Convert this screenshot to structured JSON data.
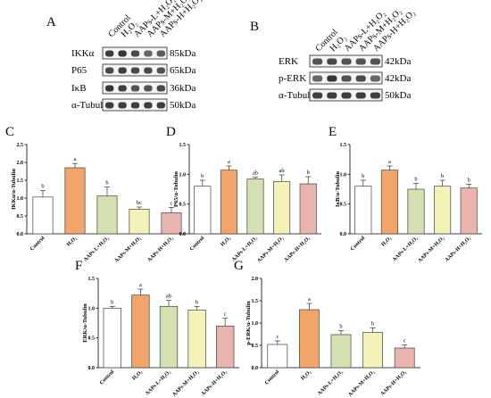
{
  "panels": {
    "A": {
      "letter": "A",
      "lanes": [
        "Control",
        "H₂O₂",
        "AAPs-L+H₂O₂",
        "AAPs-M+H₂O₂",
        "AAPs-H+H₂O₂"
      ],
      "rows": [
        {
          "name": "IKKα",
          "kda": "85kDa"
        },
        {
          "name": "P65",
          "kda": "65kDa"
        },
        {
          "name": "IκB",
          "kda": "36kDa"
        },
        {
          "name": "α-Tubulin",
          "kda": "50kDa"
        }
      ]
    },
    "B": {
      "letter": "B",
      "lanes": [
        "Control",
        "H₂O₂",
        "AAPs-L+H₂O₂",
        "AAPs-M+H₂O₂",
        "AAPs-H+H₂O₂"
      ],
      "rows": [
        {
          "name": "ERK",
          "kda": "42kDa"
        },
        {
          "name": "p-ERK",
          "kda": "42kDa"
        },
        {
          "name": "α-Tubulin",
          "kda": "50kDa"
        }
      ]
    }
  },
  "colors": {
    "bars": [
      "#ffffff",
      "#f2a56b",
      "#d3e0b0",
      "#f4f2b9",
      "#e9b4ae"
    ]
  },
  "chart_data": [
    {
      "type": "bar",
      "letter": "C",
      "ylabel": "IKKα/α-Tubulin",
      "categories": [
        "Control",
        "H₂O₂",
        "AAPs-L+H₂O₂",
        "AAPs-M+H₂O₂",
        "AAPs-H+H₂O₂"
      ],
      "values": [
        1.03,
        1.85,
        1.06,
        0.69,
        0.59
      ],
      "errors": [
        0.18,
        0.12,
        0.25,
        0.06,
        0.15
      ],
      "letters": [
        "b",
        "a",
        "b",
        "bc",
        "c"
      ],
      "ylim": [
        0,
        2.5
      ],
      "yticks": [
        "0.0",
        "0.5",
        "1.0",
        "1.5",
        "2.0",
        "2.5"
      ]
    },
    {
      "type": "bar",
      "letter": "D",
      "ylabel": "P65/α-Tubulin",
      "categories": [
        "Control",
        "H₂O₂",
        "AAPs-L+H₂O₂",
        "AAPs-M+H₂O₂",
        "AAPs-H+H₂O₂"
      ],
      "values": [
        0.8,
        1.07,
        0.92,
        0.88,
        0.84
      ],
      "errors": [
        0.1,
        0.07,
        0.03,
        0.11,
        0.12
      ],
      "letters": [
        "b",
        "a",
        "ab",
        "ab",
        "b"
      ],
      "ylim": [
        0,
        1.5
      ],
      "yticks": [
        "0.0",
        "0.5",
        "1.0",
        "1.5"
      ]
    },
    {
      "type": "bar",
      "letter": "E",
      "ylabel": "IκB/α-Tubulin",
      "categories": [
        "Control",
        "H₂O₂",
        "AAPs-L+H₂O₂",
        "AAPs-M+H₂O₂",
        "AAPs-H+H₂O₂"
      ],
      "values": [
        0.8,
        1.07,
        0.75,
        0.8,
        0.77
      ],
      "errors": [
        0.1,
        0.07,
        0.1,
        0.1,
        0.06
      ],
      "letters": [
        "b",
        "a",
        "b",
        "b",
        "b"
      ],
      "ylim": [
        0,
        1.5
      ],
      "yticks": [
        "0.0",
        "0.5",
        "1.0",
        "1.5"
      ]
    },
    {
      "type": "bar",
      "letter": "F",
      "ylabel": "ERK/α-Tubulin",
      "categories": [
        "Control",
        "H₂O₂",
        "AAPs-L+H₂O₂",
        "AAPs-M+H₂O₂",
        "AAPs-H+H₂O₂"
      ],
      "values": [
        1.0,
        1.22,
        1.03,
        0.97,
        0.7
      ],
      "errors": [
        0.03,
        0.1,
        0.1,
        0.06,
        0.13
      ],
      "letters": [
        "b",
        "a",
        "ab",
        "b",
        "c"
      ],
      "ylim": [
        0,
        1.5
      ],
      "yticks": [
        "0.0",
        "0.5",
        "1.0",
        "1.5"
      ]
    },
    {
      "type": "bar",
      "letter": "G",
      "ylabel": "p-ERK/α-Tubulin",
      "categories": [
        "Control",
        "H₂O₂",
        "AAPs-L+H₂O₂",
        "AAPs-M+H₂O₂",
        "AAPs-H+H₂O₂"
      ],
      "values": [
        0.52,
        1.3,
        0.74,
        0.79,
        0.44
      ],
      "errors": [
        0.08,
        0.14,
        0.09,
        0.1,
        0.07
      ],
      "letters": [
        "c",
        "a",
        "b",
        "b",
        "c"
      ],
      "ylim": [
        0,
        2.0
      ],
      "yticks": [
        "0.0",
        "0.5",
        "1.0",
        "1.5",
        "2.0"
      ]
    }
  ]
}
